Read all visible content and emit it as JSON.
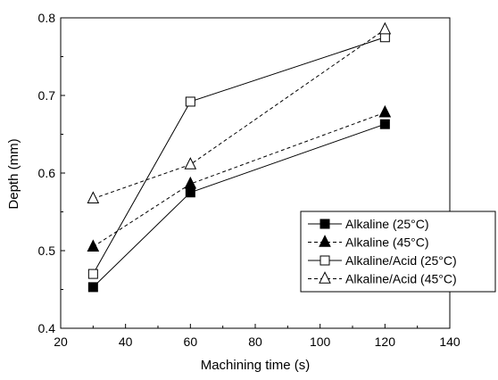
{
  "chart_data": {
    "type": "line",
    "title": "",
    "xlabel": "Machining time (s)",
    "ylabel": "Depth (mm)",
    "xlim": [
      20,
      140
    ],
    "ylim": [
      0.4,
      0.8
    ],
    "xticks": [
      "20",
      "40",
      "60",
      "80",
      "100",
      "120",
      "140"
    ],
    "yticks": [
      "0.4",
      "0.5",
      "0.6",
      "0.7",
      "0.8"
    ],
    "grid": false,
    "legend_position": "lower-right",
    "x": [
      30,
      60,
      120
    ],
    "series": [
      {
        "name": "Alkaline (25°C)",
        "values": [
          0.453,
          0.575,
          0.663
        ],
        "marker": "square-filled",
        "line": "solid"
      },
      {
        "name": "Alkaline (45°C)",
        "values": [
          0.505,
          0.586,
          0.678
        ],
        "marker": "triangle-filled",
        "line": "dashed"
      },
      {
        "name": "Alkaline/Acid (25°C)",
        "values": [
          0.47,
          0.692,
          0.775
        ],
        "marker": "square-open",
        "line": "solid"
      },
      {
        "name": "Alkaline/Acid (45°C)",
        "values": [
          0.567,
          0.611,
          0.785
        ],
        "marker": "triangle-open",
        "line": "dashed"
      }
    ]
  }
}
